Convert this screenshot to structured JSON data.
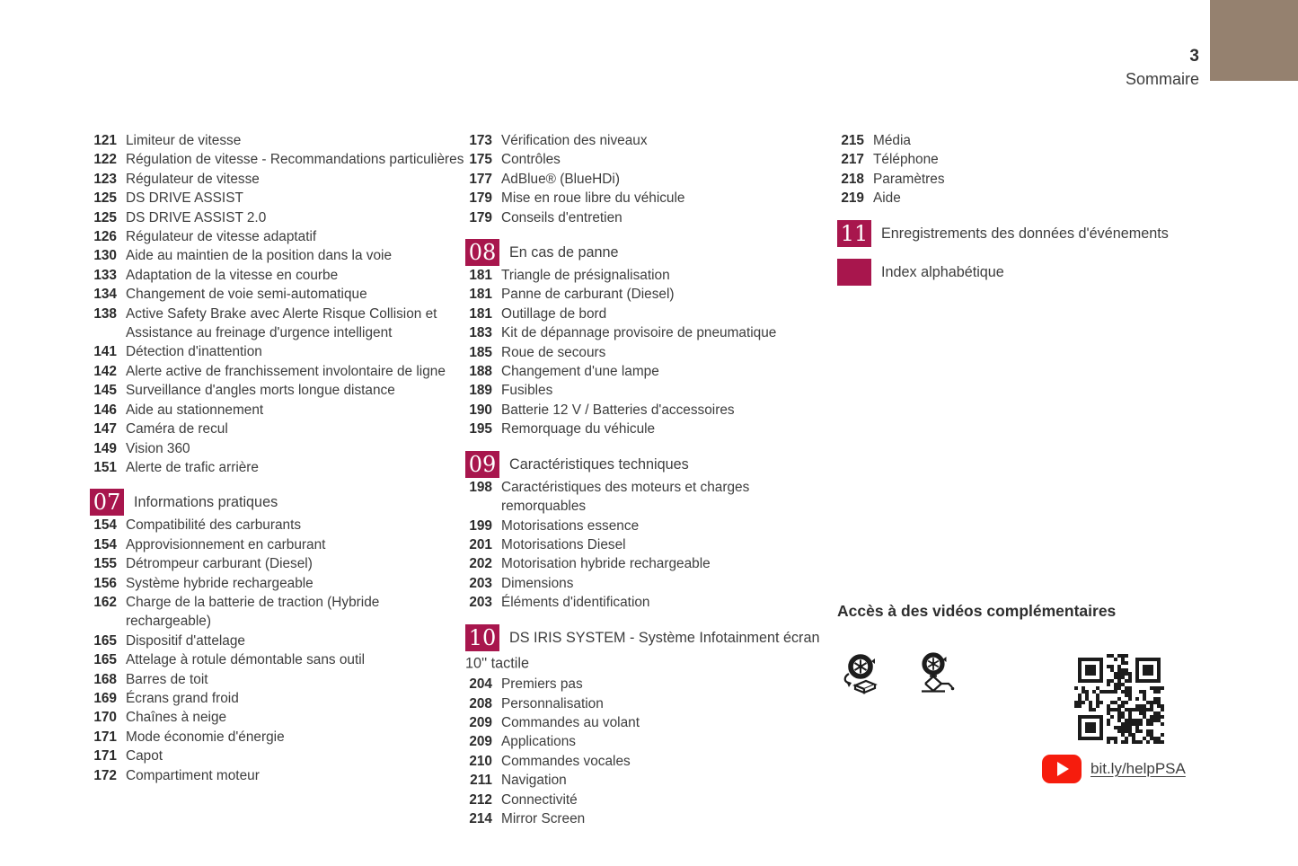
{
  "page": {
    "number": "3",
    "title": "Sommaire"
  },
  "colors": {
    "accent": "#A8164D",
    "corner": "#95816F",
    "youtube": "#F61C0D",
    "text": "#3d3d3d"
  },
  "toc_columns": [
    {
      "blocks": [
        {
          "type": "entries",
          "items": [
            [
              "121",
              "Limiteur de vitesse"
            ],
            [
              "122",
              "Régulation de vitesse - Recommandations particulières"
            ],
            [
              "123",
              "Régulateur de vitesse"
            ],
            [
              "125",
              "DS DRIVE ASSIST"
            ],
            [
              "125",
              "DS DRIVE ASSIST 2.0"
            ],
            [
              "126",
              "Régulateur de vitesse adaptatif"
            ],
            [
              "130",
              "Aide au maintien de la position dans la voie"
            ],
            [
              "133",
              "Adaptation de la vitesse en courbe"
            ],
            [
              "134",
              "Changement de voie semi-automatique"
            ],
            [
              "138",
              "Active Safety Brake avec Alerte Risque Collision et Assistance au freinage d'urgence intelligent"
            ],
            [
              "141",
              "Détection d'inattention"
            ],
            [
              "142",
              "Alerte active de franchissement involontaire de ligne"
            ],
            [
              "145",
              "Surveillance d'angles morts longue distance"
            ],
            [
              "146",
              "Aide au stationnement"
            ],
            [
              "147",
              "Caméra de recul"
            ],
            [
              "149",
              "Vision 360"
            ],
            [
              "151",
              "Alerte de trafic arrière"
            ]
          ]
        },
        {
          "type": "section",
          "badge": "07",
          "title": "Informations pratiques"
        },
        {
          "type": "entries",
          "items": [
            [
              "154",
              "Compatibilité des carburants"
            ],
            [
              "154",
              "Approvisionnement en carburant"
            ],
            [
              "155",
              "Détrompeur carburant (Diesel)"
            ],
            [
              "156",
              "Système hybride rechargeable"
            ],
            [
              "162",
              "Charge de la batterie de traction (Hybride rechargeable)"
            ],
            [
              "165",
              "Dispositif d'attelage"
            ],
            [
              "165",
              "Attelage à rotule démontable sans outil"
            ],
            [
              "168",
              "Barres de toit"
            ],
            [
              "169",
              "Écrans grand froid"
            ],
            [
              "170",
              "Chaînes à neige"
            ],
            [
              "171",
              "Mode économie d'énergie"
            ],
            [
              "171",
              "Capot"
            ],
            [
              "172",
              "Compartiment moteur"
            ]
          ]
        }
      ]
    },
    {
      "blocks": [
        {
          "type": "entries",
          "items": [
            [
              "173",
              "Vérification des niveaux"
            ],
            [
              "175",
              "Contrôles"
            ],
            [
              "177",
              "AdBlue® (BlueHDi)"
            ],
            [
              "179",
              "Mise en roue libre du véhicule"
            ],
            [
              "179",
              "Conseils d'entretien"
            ]
          ]
        },
        {
          "type": "section",
          "badge": "08",
          "title": "En cas de panne"
        },
        {
          "type": "entries",
          "items": [
            [
              "181",
              "Triangle de présignalisation"
            ],
            [
              "181",
              "Panne de carburant (Diesel)"
            ],
            [
              "181",
              "Outillage de bord"
            ],
            [
              "183",
              "Kit de dépannage provisoire de pneumatique"
            ],
            [
              "185",
              "Roue de secours"
            ],
            [
              "188",
              "Changement d'une lampe"
            ],
            [
              "189",
              "Fusibles"
            ],
            [
              "190",
              "Batterie 12 V / Batteries d'accessoires"
            ],
            [
              "195",
              "Remorquage du véhicule"
            ]
          ]
        },
        {
          "type": "section",
          "badge": "09",
          "title": "Caractéristiques techniques"
        },
        {
          "type": "entries",
          "items": [
            [
              "198",
              "Caractéristiques des moteurs et charges remorquables"
            ],
            [
              "199",
              "Motorisations essence"
            ],
            [
              "201",
              "Motorisations Diesel"
            ],
            [
              "202",
              "Motorisation hybride rechargeable"
            ],
            [
              "203",
              "Dimensions"
            ],
            [
              "203",
              "Éléments d'identification"
            ]
          ]
        },
        {
          "type": "section",
          "badge": "10",
          "title": "DS IRIS SYSTEM - Système Infotainment écran 10'' tactile"
        },
        {
          "type": "entries",
          "items": [
            [
              "204",
              "Premiers pas"
            ],
            [
              "208",
              "Personnalisation"
            ],
            [
              "209",
              "Commandes au volant"
            ],
            [
              "209",
              "Applications"
            ],
            [
              "210",
              "Commandes vocales"
            ],
            [
              "211",
              "Navigation"
            ],
            [
              "212",
              "Connectivité"
            ],
            [
              "214",
              "Mirror Screen"
            ]
          ]
        }
      ]
    },
    {
      "blocks": [
        {
          "type": "entries",
          "items": [
            [
              "215",
              "Média"
            ],
            [
              "217",
              "Téléphone"
            ],
            [
              "218",
              "Paramètres"
            ],
            [
              "219",
              "Aide"
            ]
          ]
        },
        {
          "type": "section",
          "badge": "11",
          "title": "Enregistrements des données d'événements"
        },
        {
          "type": "section",
          "badge": "",
          "title": "Index alphabétique"
        }
      ]
    }
  ],
  "videos": {
    "heading": "Accès à des vidéos complémentaires",
    "icons": [
      "tire-inflation-kit-icon",
      "scissor-jack-icon"
    ],
    "qr": "qr-code",
    "youtube_icon": "youtube-play-icon",
    "link_label": "bit.ly/helpPSA"
  }
}
